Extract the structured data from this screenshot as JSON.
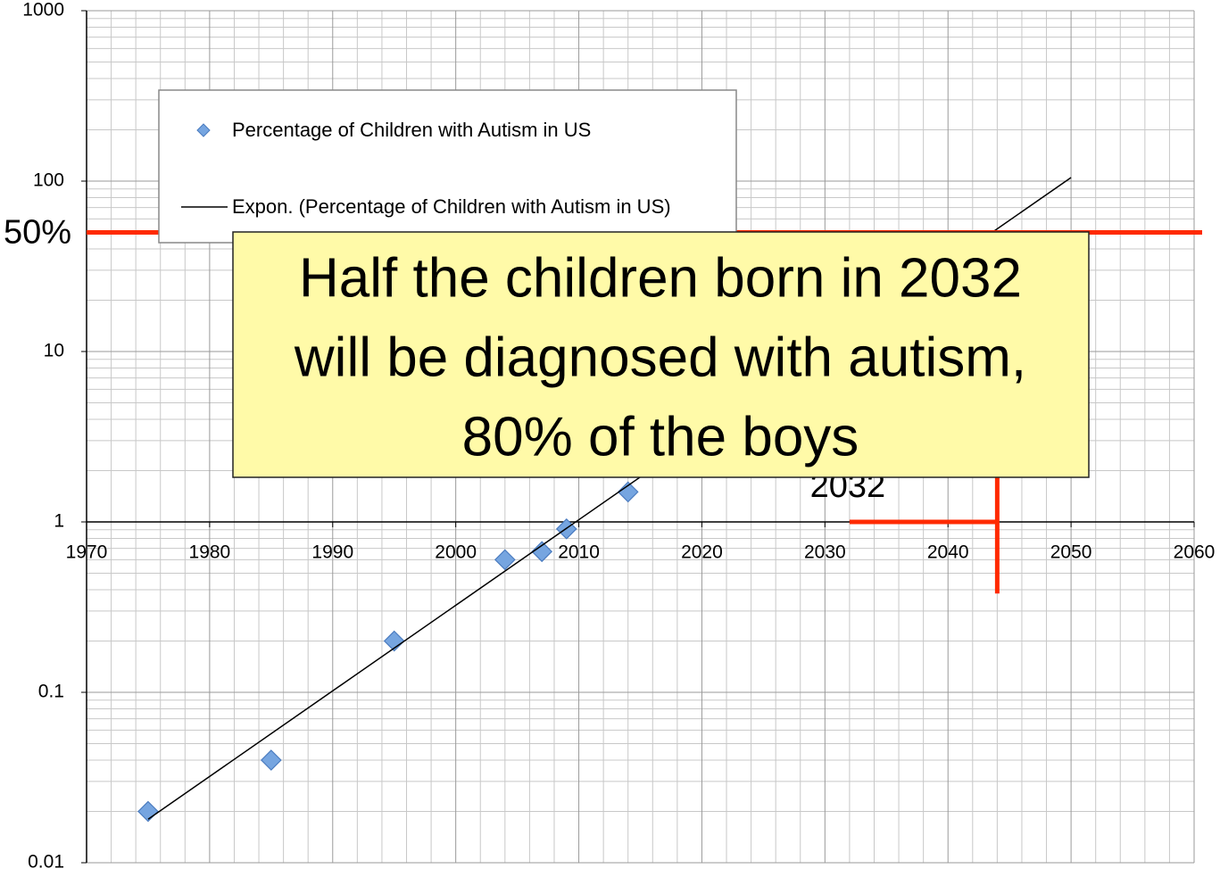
{
  "chart_data": {
    "type": "scatter",
    "log_y": true,
    "grid": true,
    "legend": "upper left",
    "xlim": [
      1970,
      2060
    ],
    "xticks": [
      1970,
      1980,
      1990,
      2000,
      2010,
      2020,
      2030,
      2040,
      2050,
      2060
    ],
    "ylim": [
      0.01,
      1000
    ],
    "yticks": [
      0.01,
      0.1,
      1,
      10,
      100,
      1000
    ],
    "series": [
      {
        "name": "Percentage of Children with Autism in US",
        "type": "scatter",
        "color": "#76a5e0",
        "x": [
          1975,
          1985,
          1995,
          2004,
          2007,
          2009,
          2014
        ],
        "values": [
          0.02,
          0.04,
          0.2,
          0.6,
          0.67,
          0.91,
          1.5
        ]
      },
      {
        "name": "Expon. (Percentage of Children with Autism in US)",
        "type": "line",
        "color": "#000000",
        "x": [
          1975,
          2050
        ],
        "values": [
          0.018,
          105
        ]
      }
    ],
    "annotations": {
      "hline": {
        "value": 50,
        "label": "50%",
        "color": "#ff2a00"
      },
      "vline": {
        "x": 2044,
        "ylim": [
          50,
          0.38
        ],
        "color": "#ff2a00"
      },
      "hsegment": {
        "x": [
          2032,
          2044
        ],
        "y": 1,
        "color": "#ff2a00"
      },
      "year_label": {
        "x": 2032,
        "label": "2032"
      },
      "callout": [
        "Half the children born in 2032",
        "will be diagnosed with autism,",
        "80% of the boys"
      ]
    }
  }
}
